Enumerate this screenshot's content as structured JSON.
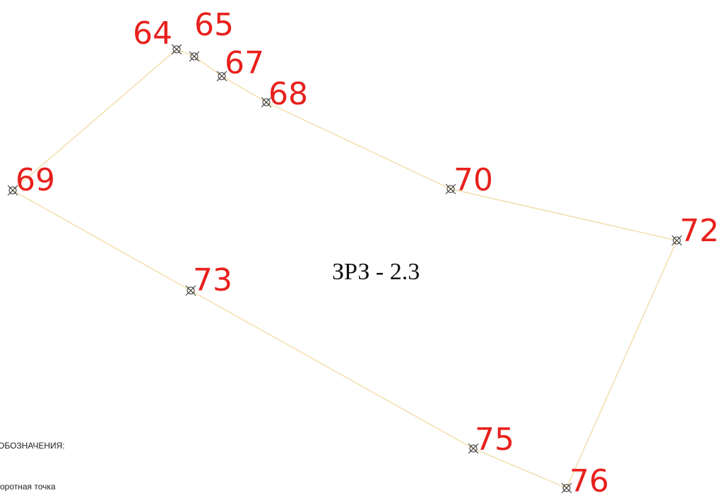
{
  "zone_label": "ЗРЗ - 2.3",
  "points": [
    {
      "label": "64"
    },
    {
      "label": "65"
    },
    {
      "label": "67"
    },
    {
      "label": "68"
    },
    {
      "label": "70"
    },
    {
      "label": "72"
    },
    {
      "label": "76"
    },
    {
      "label": "75"
    },
    {
      "label": "73"
    },
    {
      "label": "69"
    }
  ],
  "legend": {
    "title": "ОБОЗНАЧЕНИЯ:",
    "items": [
      "оротная точка"
    ]
  }
}
